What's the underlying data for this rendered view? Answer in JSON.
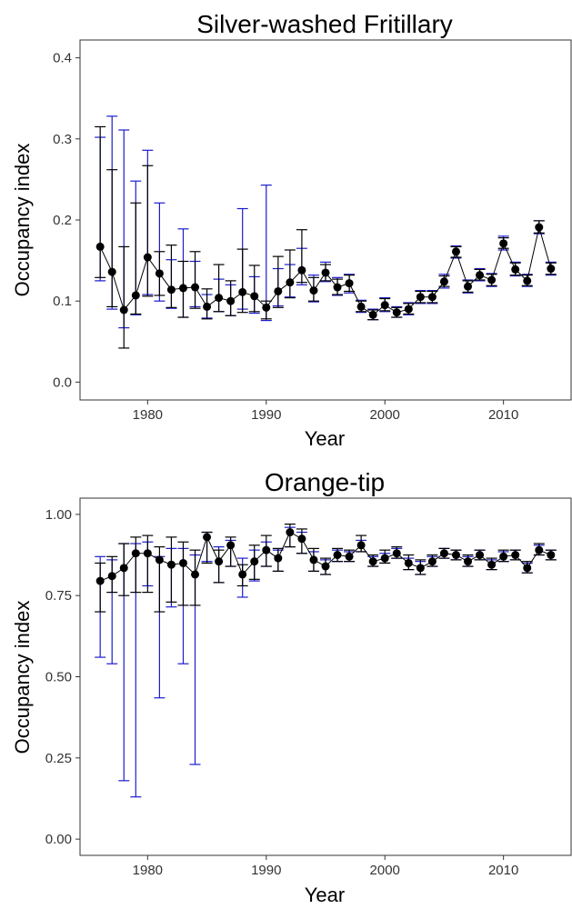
{
  "chart_data": [
    {
      "type": "scatter",
      "title": "Silver-washed Fritillary",
      "xlabel": "Year",
      "ylabel": "Occupancy index",
      "xlim": [
        1974.3,
        2015.7
      ],
      "ylim": [
        -0.022,
        0.422
      ],
      "xticks": [
        1980,
        1990,
        2000,
        2010
      ],
      "yticks": [
        0.0,
        0.1,
        0.2,
        0.3,
        0.4
      ],
      "ytick_labels": [
        "0.0",
        "0.1",
        "0.2",
        "0.3",
        "0.4"
      ],
      "grid": false,
      "colors": {
        "line": "#000000",
        "blue_bars": "#1c1ccc",
        "black_bars": "#000000",
        "points": "#000000"
      },
      "x": [
        1976,
        1977,
        1978,
        1979,
        1980,
        1981,
        1982,
        1983,
        1984,
        1985,
        1986,
        1987,
        1988,
        1989,
        1990,
        1991,
        1992,
        1993,
        1994,
        1995,
        1996,
        1997,
        1998,
        1999,
        2000,
        2001,
        2002,
        2003,
        2004,
        2005,
        2006,
        2007,
        2008,
        2009,
        2010,
        2011,
        2012,
        2013,
        2014
      ],
      "series": [
        {
          "values": [
            0.167,
            0.136,
            0.089,
            0.107,
            0.154,
            0.134,
            0.114,
            0.116,
            0.117,
            0.093,
            0.104,
            0.1,
            0.111,
            0.106,
            0.092,
            0.112,
            0.123,
            0.138,
            0.113,
            0.135,
            0.117,
            0.122,
            0.093,
            0.083,
            0.095,
            0.086,
            0.09,
            0.105,
            0.105,
            0.124,
            0.161,
            0.118,
            0.132,
            0.126,
            0.171,
            0.139,
            0.125,
            0.191,
            0.14
          ],
          "blue_lower": [
            0.125,
            0.09,
            0.067,
            0.083,
            0.108,
            0.1,
            0.091,
            0.08,
            0.093,
            0.079,
            0.087,
            0.082,
            0.09,
            0.085,
            0.076,
            0.094,
            0.105,
            0.12,
            0.099,
            0.124,
            0.107,
            0.11,
            0.086,
            0.077,
            0.087,
            0.08,
            0.083,
            0.097,
            0.097,
            0.116,
            0.153,
            0.11,
            0.125,
            0.118,
            0.163,
            0.131,
            0.118,
            0.183,
            0.132
          ],
          "blue_upper": [
            0.302,
            0.328,
            0.311,
            0.248,
            0.286,
            0.221,
            0.151,
            0.189,
            0.149,
            0.108,
            0.127,
            0.12,
            0.214,
            0.13,
            0.243,
            0.14,
            0.145,
            0.165,
            0.132,
            0.148,
            0.129,
            0.133,
            0.101,
            0.09,
            0.104,
            0.093,
            0.098,
            0.113,
            0.113,
            0.133,
            0.168,
            0.126,
            0.14,
            0.134,
            0.18,
            0.148,
            0.133,
            0.199,
            0.148
          ],
          "black_lower": [
            0.129,
            0.093,
            0.042,
            0.084,
            0.106,
            0.107,
            0.092,
            0.08,
            0.091,
            0.078,
            0.087,
            0.082,
            0.086,
            0.087,
            0.078,
            0.092,
            0.104,
            0.123,
            0.1,
            0.125,
            0.108,
            0.112,
            0.087,
            0.077,
            0.088,
            0.08,
            0.084,
            0.098,
            0.098,
            0.118,
            0.154,
            0.111,
            0.126,
            0.119,
            0.165,
            0.132,
            0.119,
            0.184,
            0.133
          ],
          "black_upper": [
            0.315,
            0.262,
            0.167,
            0.221,
            0.267,
            0.161,
            0.169,
            0.149,
            0.161,
            0.115,
            0.145,
            0.125,
            0.164,
            0.144,
            0.1,
            0.155,
            0.163,
            0.188,
            0.129,
            0.145,
            0.127,
            0.132,
            0.1,
            0.089,
            0.103,
            0.092,
            0.097,
            0.112,
            0.112,
            0.131,
            0.167,
            0.125,
            0.139,
            0.133,
            0.178,
            0.147,
            0.132,
            0.199,
            0.147
          ]
        }
      ]
    },
    {
      "type": "scatter",
      "title": "Orange-tip",
      "xlabel": "Year",
      "ylabel": "Occupancy index",
      "xlim": [
        1974.3,
        2015.7
      ],
      "ylim": [
        -0.05,
        1.05
      ],
      "xticks": [
        1980,
        1990,
        2000,
        2010
      ],
      "yticks": [
        0.0,
        0.25,
        0.5,
        0.75,
        1.0
      ],
      "ytick_labels": [
        "0.00",
        "0.25",
        "0.50",
        "0.75",
        "1.00"
      ],
      "grid": false,
      "colors": {
        "line": "#000000",
        "blue_bars": "#1c1ccc",
        "black_bars": "#000000",
        "points": "#000000"
      },
      "x": [
        1976,
        1977,
        1978,
        1979,
        1980,
        1981,
        1982,
        1983,
        1984,
        1985,
        1986,
        1987,
        1988,
        1989,
        1990,
        1991,
        1992,
        1993,
        1994,
        1995,
        1996,
        1997,
        1998,
        1999,
        2000,
        2001,
        2002,
        2003,
        2004,
        2005,
        2006,
        2007,
        2008,
        2009,
        2010,
        2011,
        2012,
        2013,
        2014
      ],
      "series": [
        {
          "values": [
            0.795,
            0.81,
            0.835,
            0.88,
            0.88,
            0.86,
            0.845,
            0.85,
            0.815,
            0.93,
            0.855,
            0.905,
            0.815,
            0.855,
            0.89,
            0.865,
            0.945,
            0.925,
            0.86,
            0.84,
            0.875,
            0.87,
            0.905,
            0.855,
            0.865,
            0.88,
            0.85,
            0.835,
            0.855,
            0.88,
            0.875,
            0.855,
            0.875,
            0.845,
            0.87,
            0.875,
            0.835,
            0.89,
            0.875
          ],
          "blue_lower": [
            0.56,
            0.54,
            0.18,
            0.13,
            0.78,
            0.435,
            0.715,
            0.54,
            0.23,
            0.855,
            0.79,
            0.84,
            0.745,
            0.795,
            0.84,
            0.825,
            0.9,
            0.88,
            0.825,
            0.815,
            0.855,
            0.855,
            0.885,
            0.84,
            0.85,
            0.865,
            0.83,
            0.815,
            0.84,
            0.865,
            0.86,
            0.84,
            0.86,
            0.83,
            0.855,
            0.86,
            0.82,
            0.875,
            0.86
          ],
          "blue_upper": [
            0.87,
            0.86,
            0.91,
            0.91,
            0.915,
            0.87,
            0.895,
            0.895,
            0.875,
            0.945,
            0.9,
            0.92,
            0.865,
            0.89,
            0.915,
            0.89,
            0.96,
            0.945,
            0.885,
            0.86,
            0.89,
            0.885,
            0.92,
            0.87,
            0.88,
            0.895,
            0.865,
            0.855,
            0.87,
            0.895,
            0.89,
            0.87,
            0.89,
            0.86,
            0.885,
            0.89,
            0.85,
            0.905,
            0.89
          ],
          "black_lower": [
            0.7,
            0.76,
            0.75,
            0.76,
            0.76,
            0.7,
            0.73,
            0.72,
            0.72,
            0.85,
            0.79,
            0.84,
            0.78,
            0.8,
            0.84,
            0.825,
            0.9,
            0.88,
            0.825,
            0.815,
            0.855,
            0.855,
            0.885,
            0.84,
            0.85,
            0.865,
            0.83,
            0.815,
            0.84,
            0.865,
            0.86,
            0.84,
            0.86,
            0.83,
            0.855,
            0.86,
            0.82,
            0.875,
            0.86
          ],
          "black_upper": [
            0.85,
            0.87,
            0.91,
            0.93,
            0.935,
            0.9,
            0.93,
            0.915,
            0.89,
            0.945,
            0.89,
            0.93,
            0.845,
            0.905,
            0.935,
            0.895,
            0.97,
            0.955,
            0.895,
            0.865,
            0.895,
            0.89,
            0.935,
            0.875,
            0.89,
            0.9,
            0.875,
            0.86,
            0.875,
            0.895,
            0.89,
            0.875,
            0.89,
            0.865,
            0.89,
            0.89,
            0.855,
            0.91,
            0.89
          ]
        }
      ]
    }
  ]
}
